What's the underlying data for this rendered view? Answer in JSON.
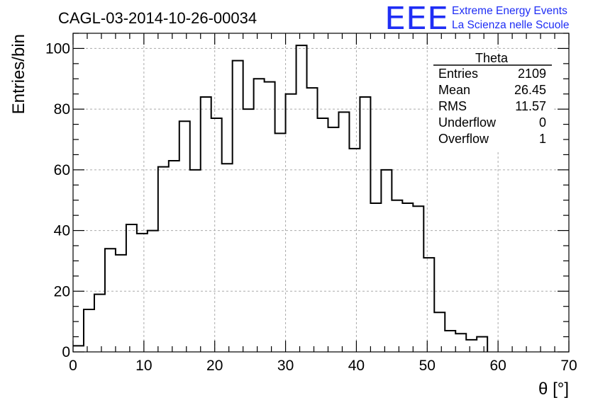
{
  "header": {
    "title": "CAGL-03-2014-10-26-00034",
    "logo_letters": "EEE",
    "logo_line1": "Extreme Energy Events",
    "logo_line2": "La Scienza nelle Scuole",
    "logo_color": "#1f2ef5"
  },
  "stats_box": {
    "name": "Theta",
    "rows": [
      {
        "label": "Entries",
        "value": "2109"
      },
      {
        "label": "Mean",
        "value": "26.45"
      },
      {
        "label": "RMS",
        "value": "11.57"
      },
      {
        "label": "Underflow",
        "value": "0"
      },
      {
        "label": "Overflow",
        "value": "1"
      }
    ]
  },
  "chart_data": {
    "type": "bar",
    "style": "step-histogram",
    "title": "CAGL-03-2014-10-26-00034",
    "xlabel": "θ [°]",
    "ylabel": "Entries/bin",
    "xlim": [
      0,
      70
    ],
    "ylim": [
      0,
      105
    ],
    "bin_width": 1.5,
    "bin_start": 0,
    "values": [
      2,
      14,
      19,
      34,
      32,
      42,
      39,
      40,
      61,
      63,
      76,
      60,
      84,
      77,
      62,
      96,
      80,
      90,
      89,
      72,
      85,
      101,
      87,
      77,
      74,
      79,
      67,
      84,
      49,
      60,
      50,
      49,
      48,
      31,
      13,
      7,
      6,
      4,
      5
    ],
    "x_ticks": [
      0,
      10,
      20,
      30,
      40,
      50,
      60,
      70
    ],
    "y_ticks": [
      0,
      20,
      40,
      60,
      80,
      100
    ],
    "grid": true,
    "line_color": "#000000",
    "grid_color": "#aaaaaa"
  }
}
